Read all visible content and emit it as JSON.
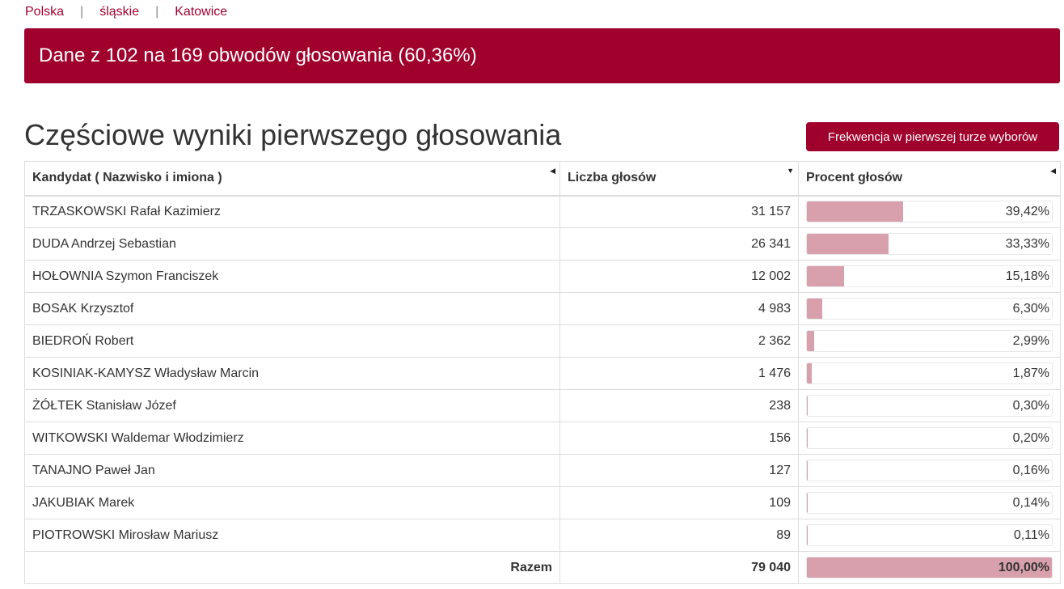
{
  "breadcrumb": [
    "Polska",
    "śląskie",
    "Katowice"
  ],
  "banner": "Dane z 102 na 169 obwodów głosowania (60,36%)",
  "heading": "Częściowe wyniki pierwszego głosowania",
  "turnout_button": "Frekwencja w pierwszej turze wyborów",
  "table": {
    "headers": [
      "Kandydat ( Nazwisko i imiona )",
      "Liczba głosów",
      "Procent głosów"
    ],
    "sort_icons": [
      "caret-left-icon",
      "caret-down-icon",
      "caret-left-icon"
    ],
    "rows": [
      {
        "name": "TRZASKOWSKI Rafał Kazimierz",
        "votes": "31 157",
        "percent": "39,42%",
        "share": 39.42
      },
      {
        "name": "DUDA Andrzej Sebastian",
        "votes": "26 341",
        "percent": "33,33%",
        "share": 33.33
      },
      {
        "name": "HOŁOWNIA Szymon Franciszek",
        "votes": "12 002",
        "percent": "15,18%",
        "share": 15.18
      },
      {
        "name": "BOSAK Krzysztof",
        "votes": "4 983",
        "percent": "6,30%",
        "share": 6.3
      },
      {
        "name": "BIEDROŃ Robert",
        "votes": "2 362",
        "percent": "2,99%",
        "share": 2.99
      },
      {
        "name": "KOSINIAK-KAMYSZ Władysław Marcin",
        "votes": "1 476",
        "percent": "1,87%",
        "share": 1.87
      },
      {
        "name": "ŻÓŁTEK Stanisław Józef",
        "votes": "238",
        "percent": "0,30%",
        "share": 0.3
      },
      {
        "name": "WITKOWSKI Waldemar Włodzimierz",
        "votes": "156",
        "percent": "0,20%",
        "share": 0.2
      },
      {
        "name": "TANAJNO Paweł Jan",
        "votes": "127",
        "percent": "0,16%",
        "share": 0.16
      },
      {
        "name": "JAKUBIAK Marek",
        "votes": "109",
        "percent": "0,14%",
        "share": 0.14
      },
      {
        "name": "PIOTROWSKI Mirosław Mariusz",
        "votes": "89",
        "percent": "0,11%",
        "share": 0.11
      }
    ],
    "total": {
      "label": "Razem",
      "votes": "79 040",
      "percent": "100,00%",
      "share": 100
    }
  },
  "colors": {
    "accent": "#a0002c",
    "bar": "#d8a0ac"
  }
}
